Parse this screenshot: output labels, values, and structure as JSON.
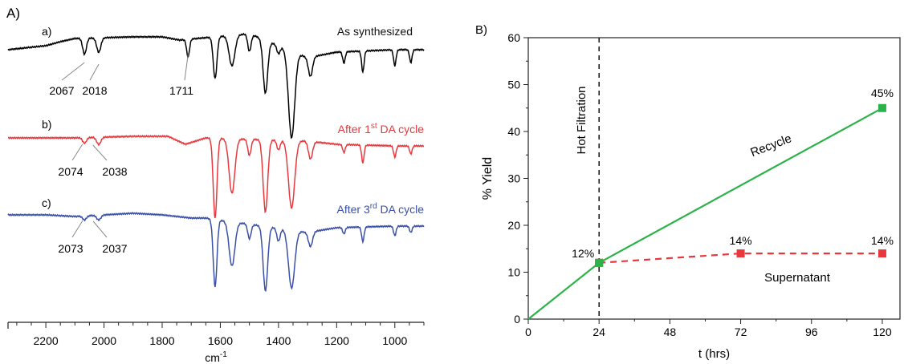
{
  "panel_a": {
    "panel_label": "A)",
    "xlabel": "cm",
    "xlabel_sup": "-1",
    "spectra": [
      {
        "tag": "a)",
        "label": "As synthesized",
        "label_sup": "",
        "label_rest": "",
        "color": "#000000",
        "peaks": [
          "2067",
          "2018",
          "1711"
        ]
      },
      {
        "tag": "b)",
        "label": "After 1",
        "label_sup": "st",
        "label_rest": " DA cycle",
        "color": "#e8383d",
        "peaks": [
          "2074",
          "2038"
        ]
      },
      {
        "tag": "c)",
        "label": "After 3",
        "label_sup": "rd",
        "label_rest": " DA cycle",
        "color": "#3a4fa8",
        "peaks": [
          "2073",
          "2037"
        ]
      }
    ]
  },
  "chart_data": [
    {
      "type": "line",
      "x_ticks": [
        "2200",
        "2000",
        "1800",
        "1600",
        "1400",
        "1200",
        "1000"
      ],
      "xlim": [
        2330,
        900
      ],
      "x_reversed": true,
      "y_ticks_shown": false,
      "series": [
        {
          "name": "a)",
          "peaks_cm1": [
            2067,
            2018,
            1711
          ]
        },
        {
          "name": "b)",
          "peaks_cm1": [
            2074,
            2038
          ]
        },
        {
          "name": "c)",
          "peaks_cm1": [
            2073,
            2037
          ]
        }
      ]
    },
    {
      "type": "line",
      "panel_label": "B)",
      "xlabel": "t (hrs)",
      "ylabel": "% Yield",
      "xlim": [
        0,
        126
      ],
      "ylim": [
        0,
        60
      ],
      "x_ticks": [
        0,
        24,
        48,
        72,
        96,
        120
      ],
      "y_ticks": [
        0,
        10,
        20,
        30,
        40,
        50,
        60
      ],
      "series": [
        {
          "name": "Recycle",
          "color": "#2bb34a",
          "style": "solid",
          "points": [
            {
              "x": 0,
              "y": 0
            },
            {
              "x": 24,
              "y": 12
            },
            {
              "x": 120,
              "y": 45
            }
          ]
        },
        {
          "name": "Supernatant",
          "color": "#e8383d",
          "style": "dashed",
          "points": [
            {
              "x": 24,
              "y": 12
            },
            {
              "x": 72,
              "y": 14
            },
            {
              "x": 120,
              "y": 14
            }
          ]
        }
      ],
      "data_labels": [
        {
          "text": "12%",
          "x": 24,
          "y": 12
        },
        {
          "text": "14%",
          "x": 72,
          "y": 14
        },
        {
          "text": "45%",
          "x": 120,
          "y": 45
        },
        {
          "text": "14%",
          "x": 120,
          "y": 14
        }
      ],
      "vline": {
        "x": 24,
        "label": "Hot Filtration"
      }
    }
  ]
}
